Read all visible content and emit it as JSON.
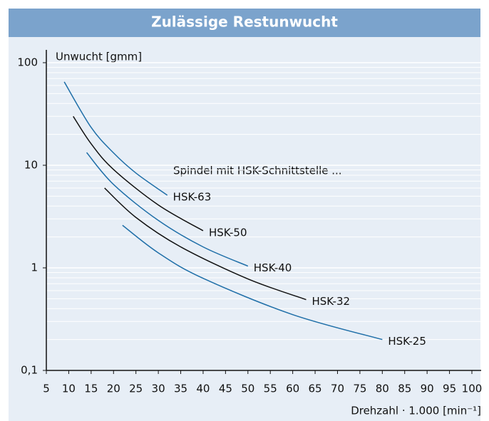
{
  "chart_data": {
    "type": "line",
    "title": "Zulässige Restunwucht",
    "y_label": "Unwucht [gmm]",
    "x_label": "Drehzahl · 1.000 [min⁻¹]",
    "annotation": "Spindel mit HSK-Schnittstelle ...",
    "log_y": true,
    "minor_grid": true,
    "xlim": [
      5,
      100
    ],
    "xticks": [
      5,
      10,
      15,
      20,
      25,
      30,
      35,
      40,
      45,
      50,
      55,
      60,
      65,
      70,
      75,
      80,
      85,
      90,
      95,
      100
    ],
    "ylim": [
      0.1,
      100
    ],
    "yticks": [
      {
        "value": 0.1,
        "label": "0,1"
      },
      1,
      10,
      100
    ],
    "series": [
      {
        "name": "HSK-63",
        "color": "#1f6fa8",
        "x": [
          9,
          15,
          20,
          25,
          32
        ],
        "values": [
          65,
          23.4,
          13.2,
          8.4,
          5.1
        ]
      },
      {
        "name": "HSK-50",
        "color": "#111111",
        "x": [
          11,
          15,
          20,
          30,
          40
        ],
        "values": [
          30,
          16.2,
          9.1,
          4.1,
          2.3
        ]
      },
      {
        "name": "HSK-40",
        "color": "#1f6fa8",
        "x": [
          14,
          20,
          30,
          40,
          50
        ],
        "values": [
          13.3,
          6.5,
          2.9,
          1.6,
          1.04
        ]
      },
      {
        "name": "HSK-32",
        "color": "#111111",
        "x": [
          18,
          25,
          35,
          50,
          63
        ],
        "values": [
          6.0,
          3.1,
          1.6,
          0.78,
          0.49
        ]
      },
      {
        "name": "HSK-25",
        "color": "#1f6fa8",
        "x": [
          22,
          30,
          40,
          60,
          80
        ],
        "values": [
          2.6,
          1.4,
          0.79,
          0.35,
          0.2
        ]
      }
    ]
  }
}
